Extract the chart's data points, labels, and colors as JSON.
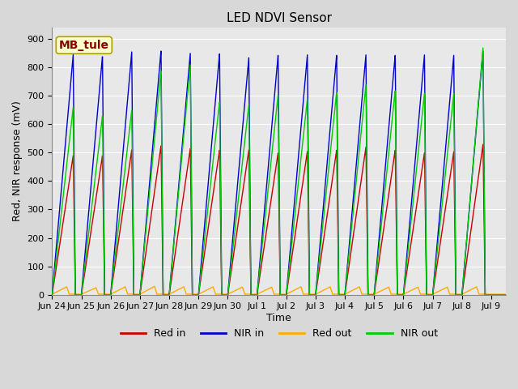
{
  "title": "LED NDVI Sensor",
  "ylabel": "Red, NIR response (mV)",
  "xlabel": "Time",
  "ylim": [
    0,
    940
  ],
  "yticks": [
    0,
    100,
    200,
    300,
    400,
    500,
    600,
    700,
    800,
    900
  ],
  "colors": {
    "red_in": "#cc0000",
    "nir_in": "#0000cc",
    "red_out": "#ffaa00",
    "nir_out": "#00cc00"
  },
  "legend_label": "MB_tule",
  "series_labels": [
    "Red in",
    "NIR in",
    "Red out",
    "NIR out"
  ],
  "bg_color": "#d8d8d8",
  "plot_bg": "#e8e8e8",
  "grid_color": "#ffffff",
  "num_spikes": 15,
  "start_day": 0,
  "end_day": 15.5,
  "tick_days": [
    0,
    1,
    2,
    3,
    4,
    5,
    6,
    7,
    8,
    9,
    10,
    11,
    12,
    13,
    14,
    15
  ],
  "tick_labels": [
    "Jun 24",
    "Jun 25",
    "Jun 26",
    "Jun 27",
    "Jun 28",
    "Jun 29",
    "Jun 30",
    "Jul 1",
    "Jul 2",
    "Jul 3",
    "Jul 4",
    "Jul 5",
    "Jul 6",
    "Jul 7",
    "Jul 8",
    "Jul 9"
  ],
  "red_in_peaks": [
    490,
    490,
    510,
    525,
    515,
    510,
    510,
    500,
    505,
    510,
    520,
    510,
    500,
    505,
    530
  ],
  "nir_in_peaks": [
    845,
    840,
    855,
    860,
    850,
    850,
    835,
    845,
    845,
    845,
    845,
    845,
    845,
    845,
    860
  ],
  "nir_out_peaks": [
    660,
    630,
    650,
    790,
    810,
    680,
    670,
    705,
    690,
    715,
    740,
    720,
    710,
    710,
    870
  ],
  "red_out_peaks": [
    28,
    25,
    28,
    30,
    28,
    28,
    27,
    27,
    28,
    28,
    28,
    27,
    27,
    27,
    28
  ],
  "title_fontsize": 11,
  "axis_fontsize": 9,
  "tick_fontsize": 8
}
